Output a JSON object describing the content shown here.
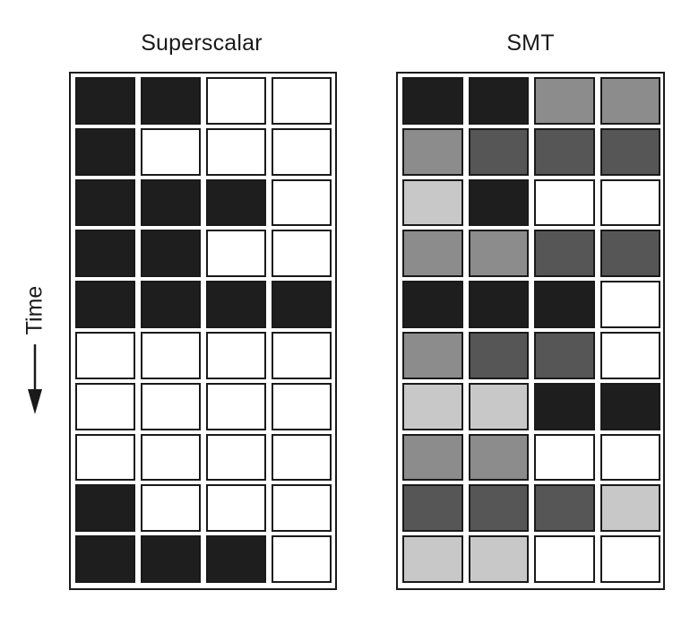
{
  "colors": {
    "busy_thread_1": "#1e1e1e",
    "busy_thread_2": "#8c8c8c",
    "busy_thread_3": "#565656",
    "busy_thread_4": "#c8c8c8",
    "idle": "#ffffff",
    "line": "#1a1a1a"
  },
  "time_label": "Time",
  "panels": [
    {
      "title": "Superscalar",
      "rows": [
        [
          "busy_thread_1",
          "busy_thread_1",
          "idle",
          "idle"
        ],
        [
          "busy_thread_1",
          "idle",
          "idle",
          "idle"
        ],
        [
          "busy_thread_1",
          "busy_thread_1",
          "busy_thread_1",
          "idle"
        ],
        [
          "busy_thread_1",
          "busy_thread_1",
          "idle",
          "idle"
        ],
        [
          "busy_thread_1",
          "busy_thread_1",
          "busy_thread_1",
          "busy_thread_1"
        ],
        [
          "idle",
          "idle",
          "idle",
          "idle"
        ],
        [
          "idle",
          "idle",
          "idle",
          "idle"
        ],
        [
          "idle",
          "idle",
          "idle",
          "idle"
        ],
        [
          "busy_thread_1",
          "idle",
          "idle",
          "idle"
        ],
        [
          "busy_thread_1",
          "busy_thread_1",
          "busy_thread_1",
          "idle"
        ]
      ]
    },
    {
      "title": "SMT",
      "rows": [
        [
          "busy_thread_1",
          "busy_thread_1",
          "busy_thread_2",
          "busy_thread_2"
        ],
        [
          "busy_thread_2",
          "busy_thread_3",
          "busy_thread_3",
          "busy_thread_3"
        ],
        [
          "busy_thread_4",
          "busy_thread_1",
          "idle",
          "idle"
        ],
        [
          "busy_thread_2",
          "busy_thread_2",
          "busy_thread_3",
          "busy_thread_3"
        ],
        [
          "busy_thread_1",
          "busy_thread_1",
          "busy_thread_1",
          "idle"
        ],
        [
          "busy_thread_2",
          "busy_thread_3",
          "busy_thread_3",
          "idle"
        ],
        [
          "busy_thread_4",
          "busy_thread_4",
          "busy_thread_1",
          "busy_thread_1"
        ],
        [
          "busy_thread_2",
          "busy_thread_2",
          "idle",
          "idle"
        ],
        [
          "busy_thread_3",
          "busy_thread_3",
          "busy_thread_3",
          "busy_thread_4"
        ],
        [
          "busy_thread_4",
          "busy_thread_4",
          "idle",
          "idle"
        ]
      ]
    }
  ]
}
